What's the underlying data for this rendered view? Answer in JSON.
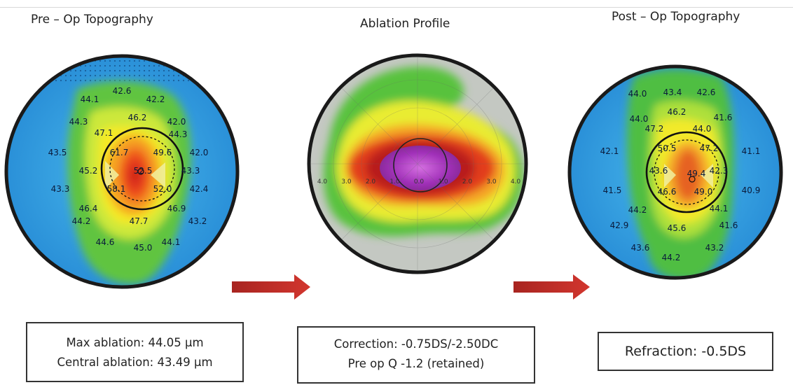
{
  "headings": {
    "pre": "Pre – Op Topography",
    "ablation": "Ablation Profile",
    "post": "Post – Op Topography"
  },
  "pre_map": {
    "values": [
      "42.6",
      "44.1",
      "42.2",
      "46.2",
      "44.3",
      "42.0",
      "47.1",
      "44.3",
      "61.7",
      "49.6",
      "43.5",
      "42.0",
      "45.2",
      "52.5",
      "43.3",
      "43.3",
      "58.1",
      "52.0",
      "42.4",
      "46.4",
      "46.9",
      "44.2",
      "47.7",
      "43.2",
      "44.6",
      "45.0",
      "44.1"
    ]
  },
  "ablation_map": {
    "axis_ticks": [
      "4.0",
      "3.0",
      "2.0",
      "1.0",
      "0.0",
      "1.0",
      "2.0",
      "3.0",
      "4.0"
    ]
  },
  "post_map": {
    "values": [
      "43.4",
      "44.0",
      "42.6",
      "46.2",
      "44.0",
      "41.6",
      "47.2",
      "44.0",
      "50.5",
      "47.2",
      "42.1",
      "41.1",
      "43.6",
      "49.4",
      "42.3",
      "41.5",
      "46.6",
      "49.0",
      "40.9",
      "44.2",
      "44.1",
      "42.9",
      "45.6",
      "41.6",
      "43.6",
      "44.2",
      "43.2"
    ]
  },
  "boxes": {
    "pre": {
      "line1": "Max ablation: 44.05 µm",
      "line2": "Central ablation: 43.49 µm"
    },
    "ablation": {
      "line1": "Correction: -0.75DS/-2.50DC",
      "line2": "Pre op Q -1.2 (retained)"
    },
    "post": {
      "line1": "Refraction: -0.5DS"
    }
  },
  "colors": {
    "arrow": "#c8312c",
    "map_blue": "#2f9fe0",
    "map_green": "#58c23c",
    "map_yellow": "#f3f02a",
    "map_red": "#e02a1c",
    "ablation_purple": "#b048c8"
  }
}
